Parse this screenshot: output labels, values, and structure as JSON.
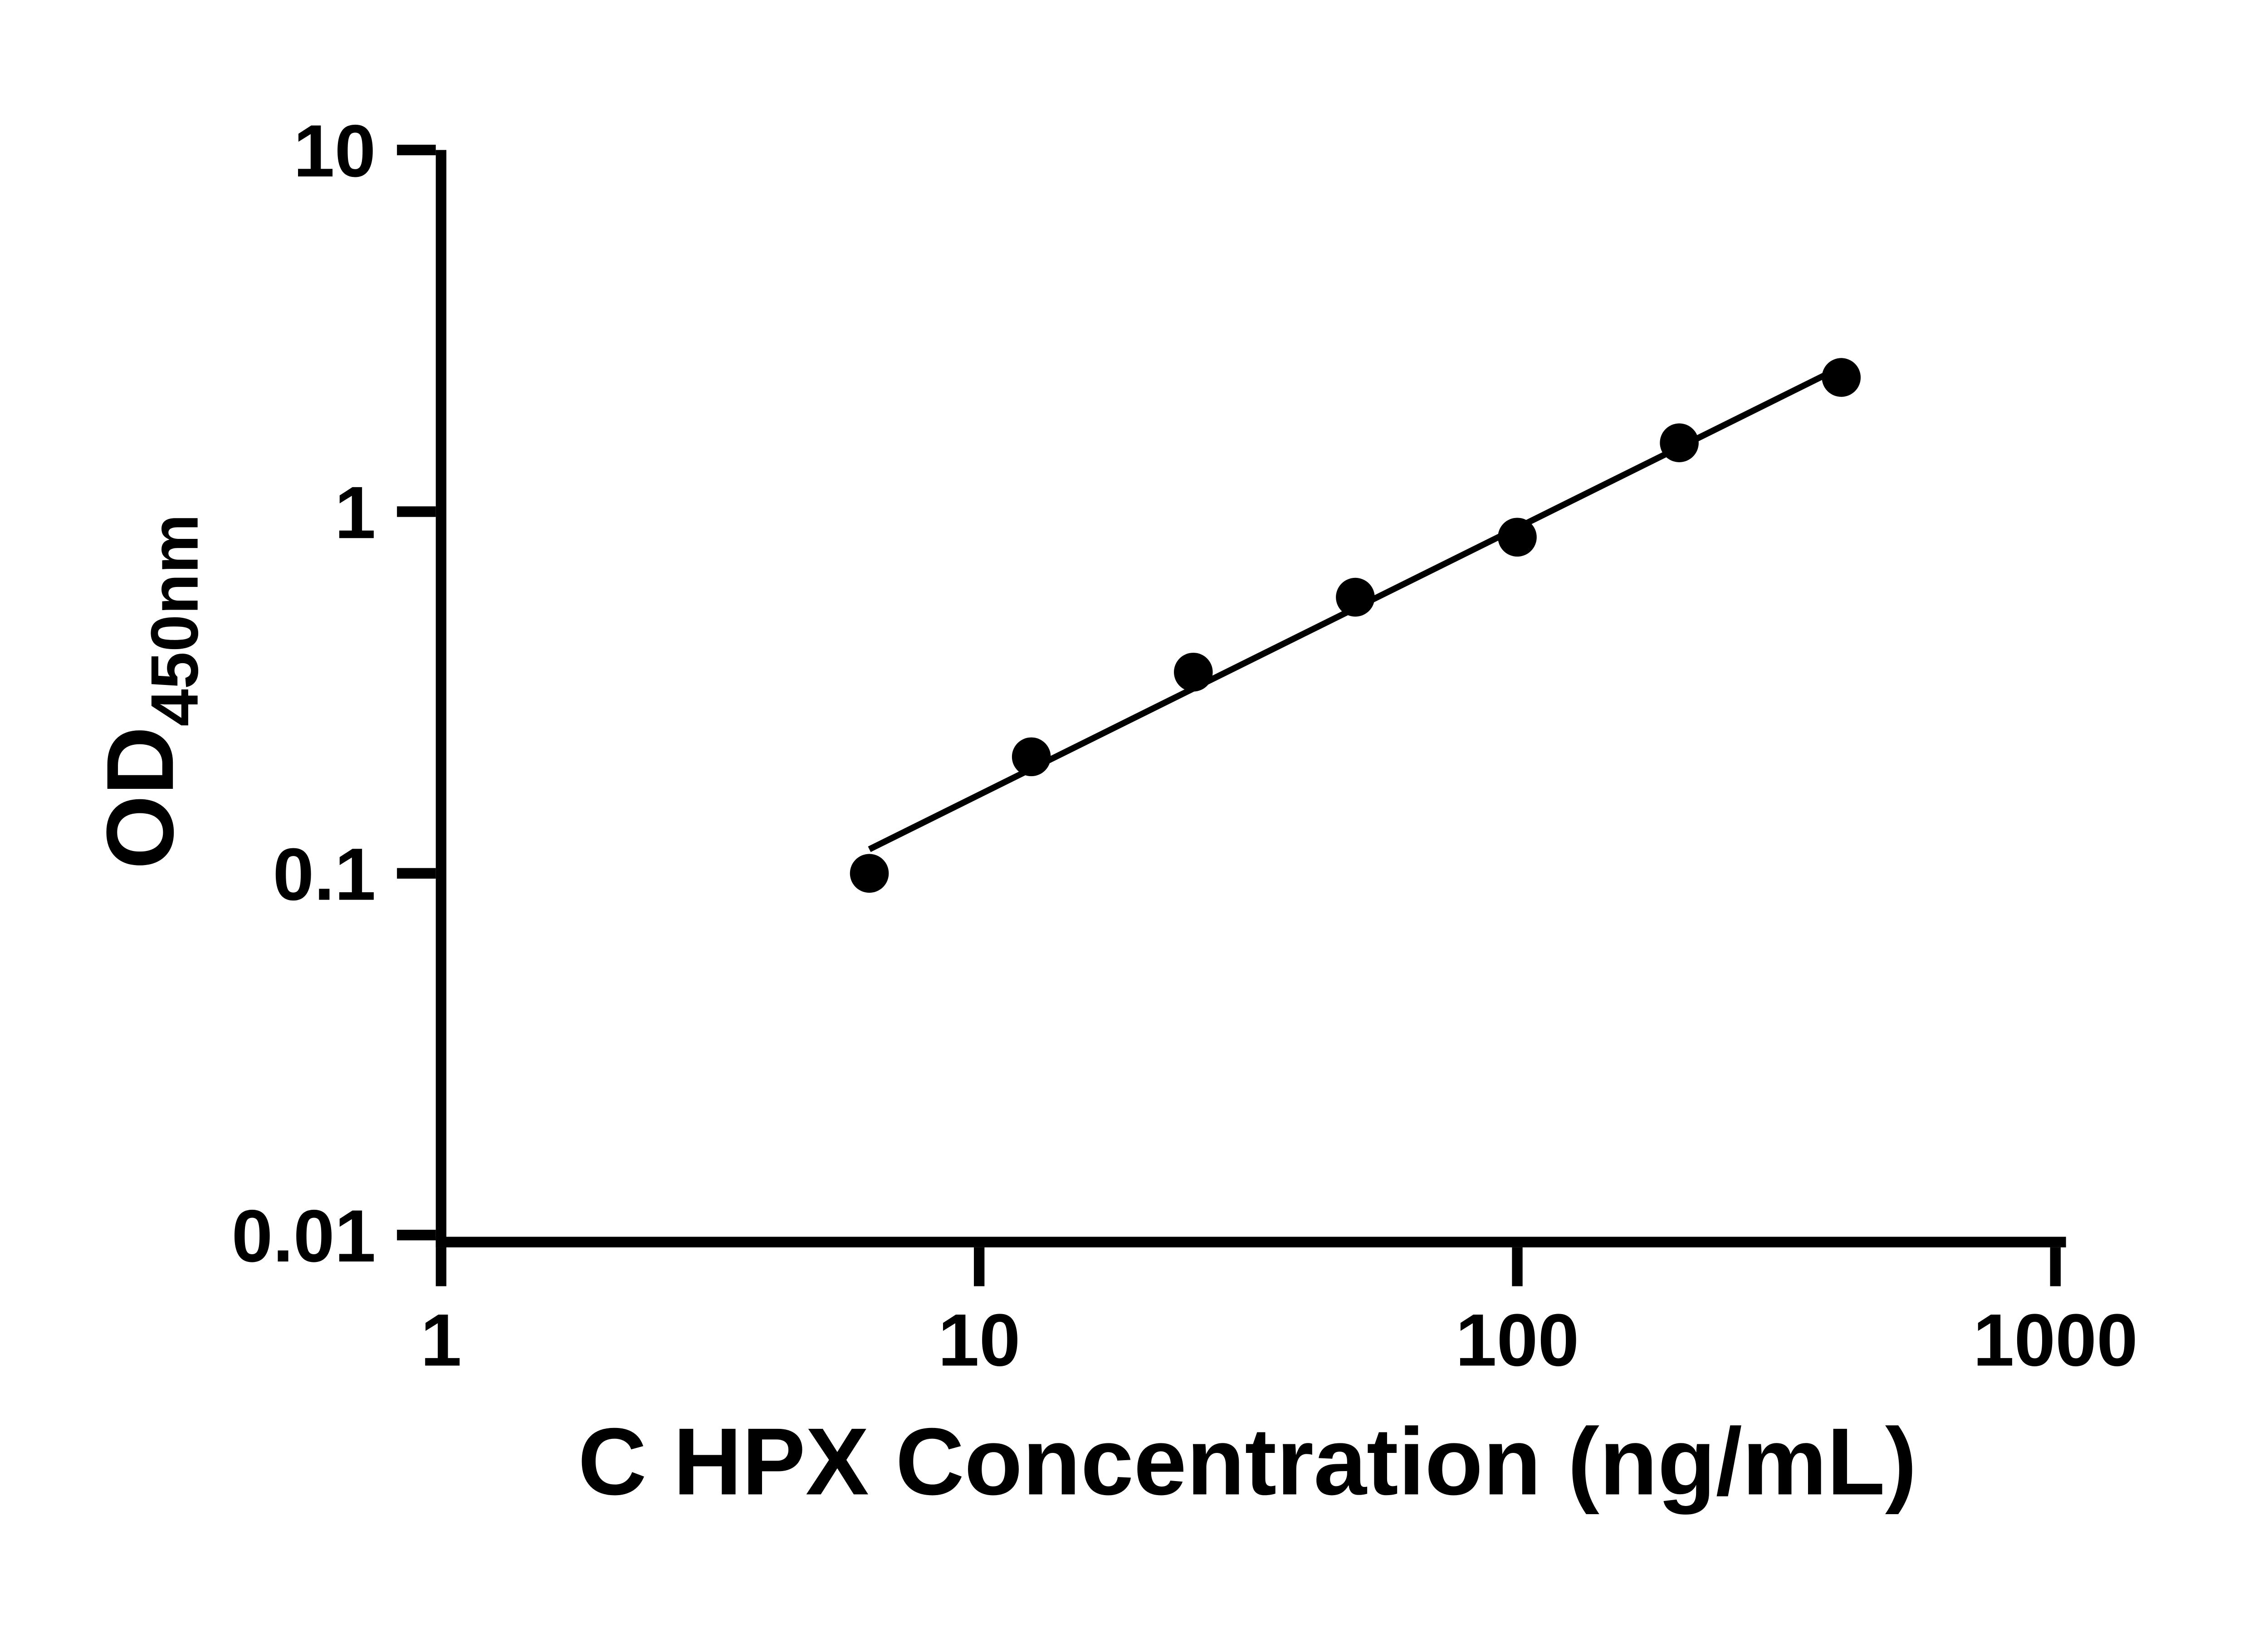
{
  "chart_data": {
    "type": "scatter",
    "title": "",
    "xlabel": "C HPX Concentration (ng/mL)",
    "ylabel_main": "OD",
    "ylabel_sub": "450nm",
    "xscale": "log",
    "yscale": "log",
    "xlim": [
      1,
      1000
    ],
    "ylim": [
      0.01,
      10
    ],
    "x_ticks": [
      1,
      10,
      100,
      1000
    ],
    "x_tick_labels": [
      "1",
      "10",
      "100",
      "1000"
    ],
    "y_ticks": [
      0.01,
      0.1,
      1,
      10
    ],
    "y_tick_labels": [
      "0.01",
      "0.1",
      "1",
      "10"
    ],
    "x": [
      6.25,
      12.5,
      25,
      50,
      100,
      200,
      400
    ],
    "y": [
      0.1,
      0.21,
      0.36,
      0.58,
      0.85,
      1.55,
      2.35
    ],
    "trend_line": true,
    "grid": false,
    "legend": false,
    "marker_color": "#000000",
    "line_color": "#000000",
    "axis_color": "#000000",
    "background_color": "#ffffff"
  }
}
